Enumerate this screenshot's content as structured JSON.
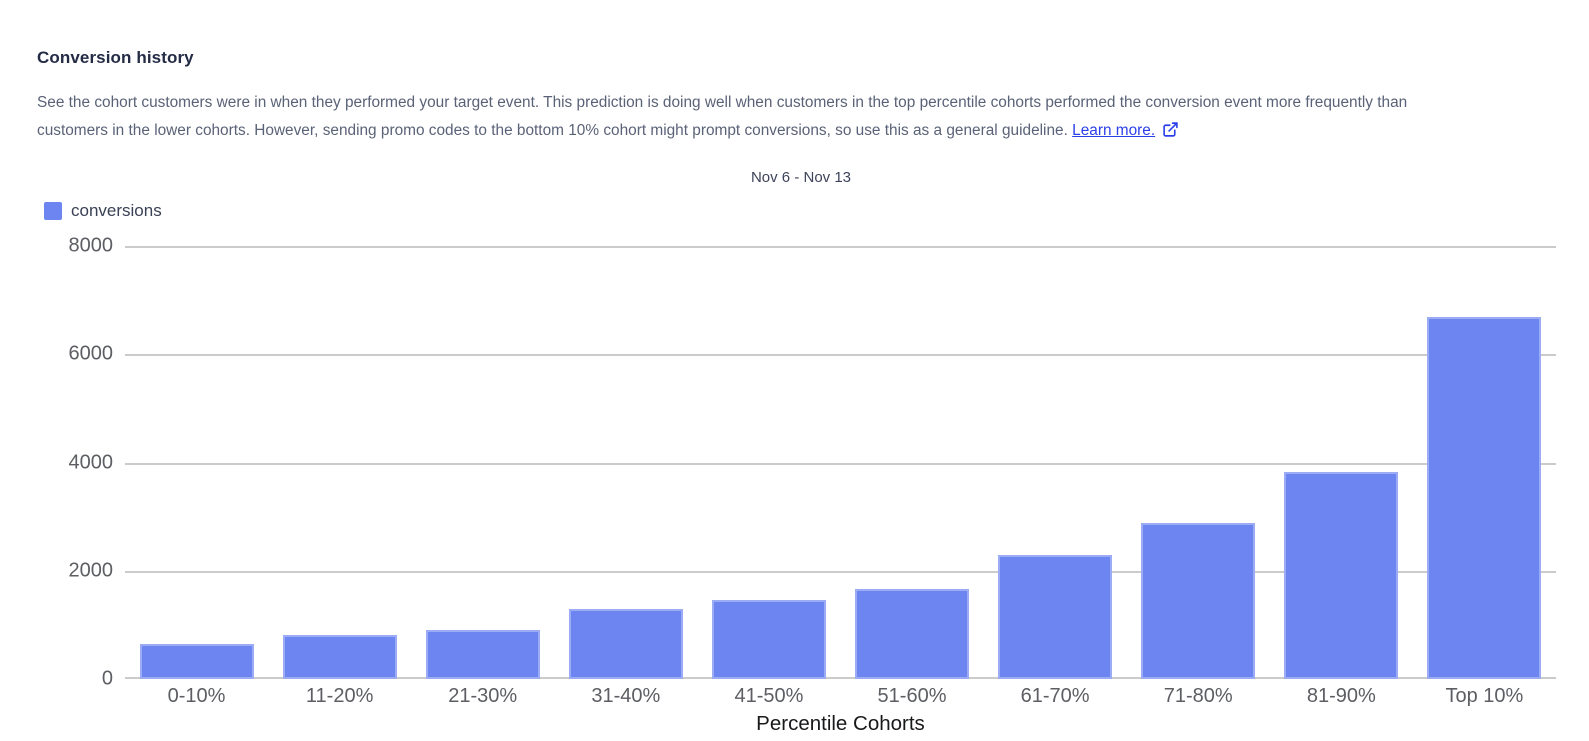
{
  "header": {
    "title": "Conversion history",
    "description_line1": "See the cohort customers were in when they performed your target event. This prediction is doing well when customers in the top percentile cohorts performed the conversion event more frequently than",
    "description_line2": "customers in the lower cohorts. However, sending promo codes to the bottom 10% cohort might prompt conversions, so use this as a general guideline.",
    "learn_more_label": "Learn more."
  },
  "colors": {
    "bar": "#6C85F0",
    "link": "#2C40EA",
    "grid": "#CBCBCB"
  },
  "chart_data": {
    "type": "bar",
    "title": "Nov 6 - Nov 13",
    "categories": [
      "0-10%",
      "11-20%",
      "21-30%",
      "31-40%",
      "41-50%",
      "51-60%",
      "61-70%",
      "71-80%",
      "81-90%",
      "Top 10%"
    ],
    "series": [
      {
        "name": "conversions",
        "values": [
          640,
          820,
          910,
          1300,
          1460,
          1670,
          2290,
          2890,
          3830,
          6680
        ]
      }
    ],
    "xlabel": "Percentile Cohorts",
    "ylabel": "",
    "ylim": [
      0,
      8000
    ],
    "yticks": [
      0,
      2000,
      4000,
      6000,
      8000
    ],
    "grid": true,
    "legend_position": "top-left"
  }
}
